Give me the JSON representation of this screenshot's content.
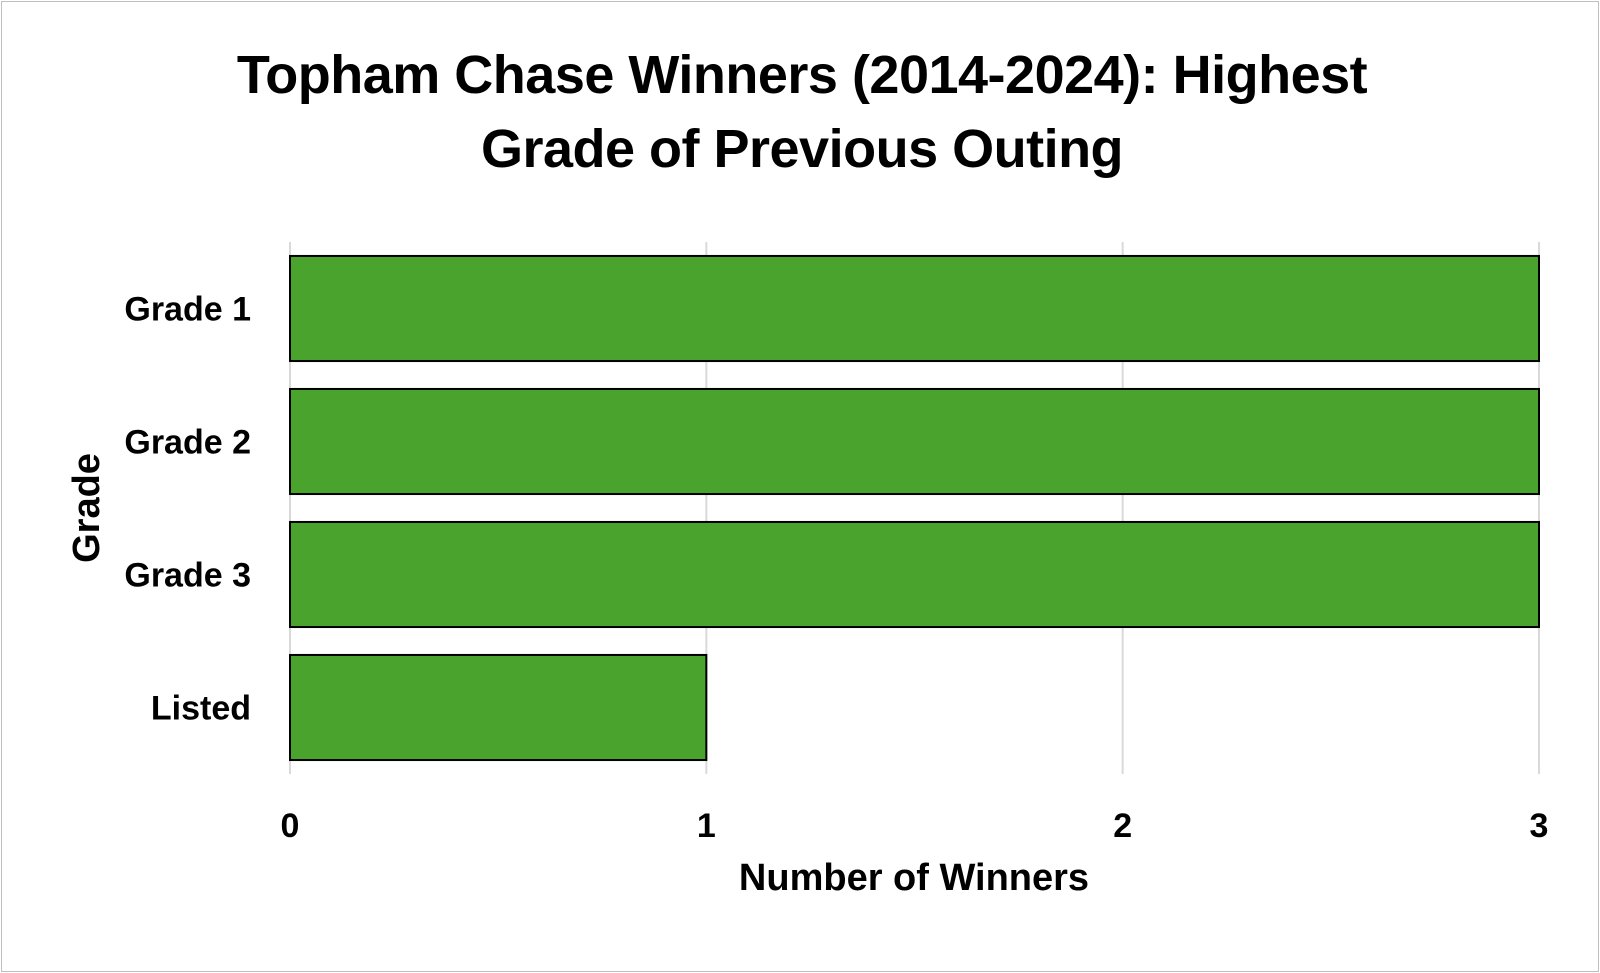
{
  "chart_data": {
    "type": "bar",
    "orientation": "horizontal",
    "title_lines": [
      "Topham Chase Winners (2014-2024): Highest",
      "Grade of Previous Outing"
    ],
    "categories": [
      "Grade 1",
      "Grade 2",
      "Grade 3",
      "Listed"
    ],
    "values": [
      3,
      3,
      3,
      1
    ],
    "xlabel": "Number of Winners",
    "ylabel": "Grade",
    "xlim": [
      0,
      3
    ],
    "xticks": [
      "0",
      "1",
      "2",
      "3"
    ],
    "grid": "vertical",
    "legend": "none",
    "bar_color": "#4aa32d",
    "bar_edge_color": "#000000"
  }
}
